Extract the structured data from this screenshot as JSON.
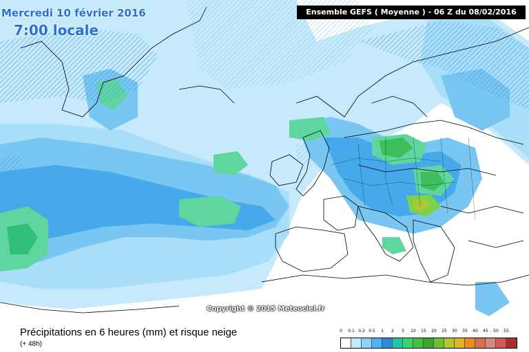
{
  "header": {
    "date": "Mercredi 10 février 2016",
    "time": "7:00 locale",
    "model": "Ensemble GEFS  ( Moyenne )  -  06 Z du 08/02/2016"
  },
  "map": {
    "copyright": "Copyright © 2015 Meteociel.fr"
  },
  "footer": {
    "title": "Précipitations en 6 heures (mm) et risque neige",
    "subtitle": "(+ 48h)"
  },
  "legend": {
    "labels": [
      "0",
      "0.1",
      "0.2",
      "0.5",
      "1",
      "2",
      "5",
      "10",
      "15",
      "20",
      "25",
      "30",
      "35",
      "40",
      "45",
      "50",
      "55"
    ],
    "colors": [
      "#ffffff",
      "#bfeaff",
      "#8ad4fb",
      "#4eb3f2",
      "#2a8ce0",
      "#1fc7a6",
      "#33d66b",
      "#44c13c",
      "#3aa82e",
      "#6ec22d",
      "#b4c926",
      "#e0b51f",
      "#eb8c1e",
      "#d96d4e",
      "#d9887d",
      "#d2585a",
      "#b32b2b"
    ]
  }
}
